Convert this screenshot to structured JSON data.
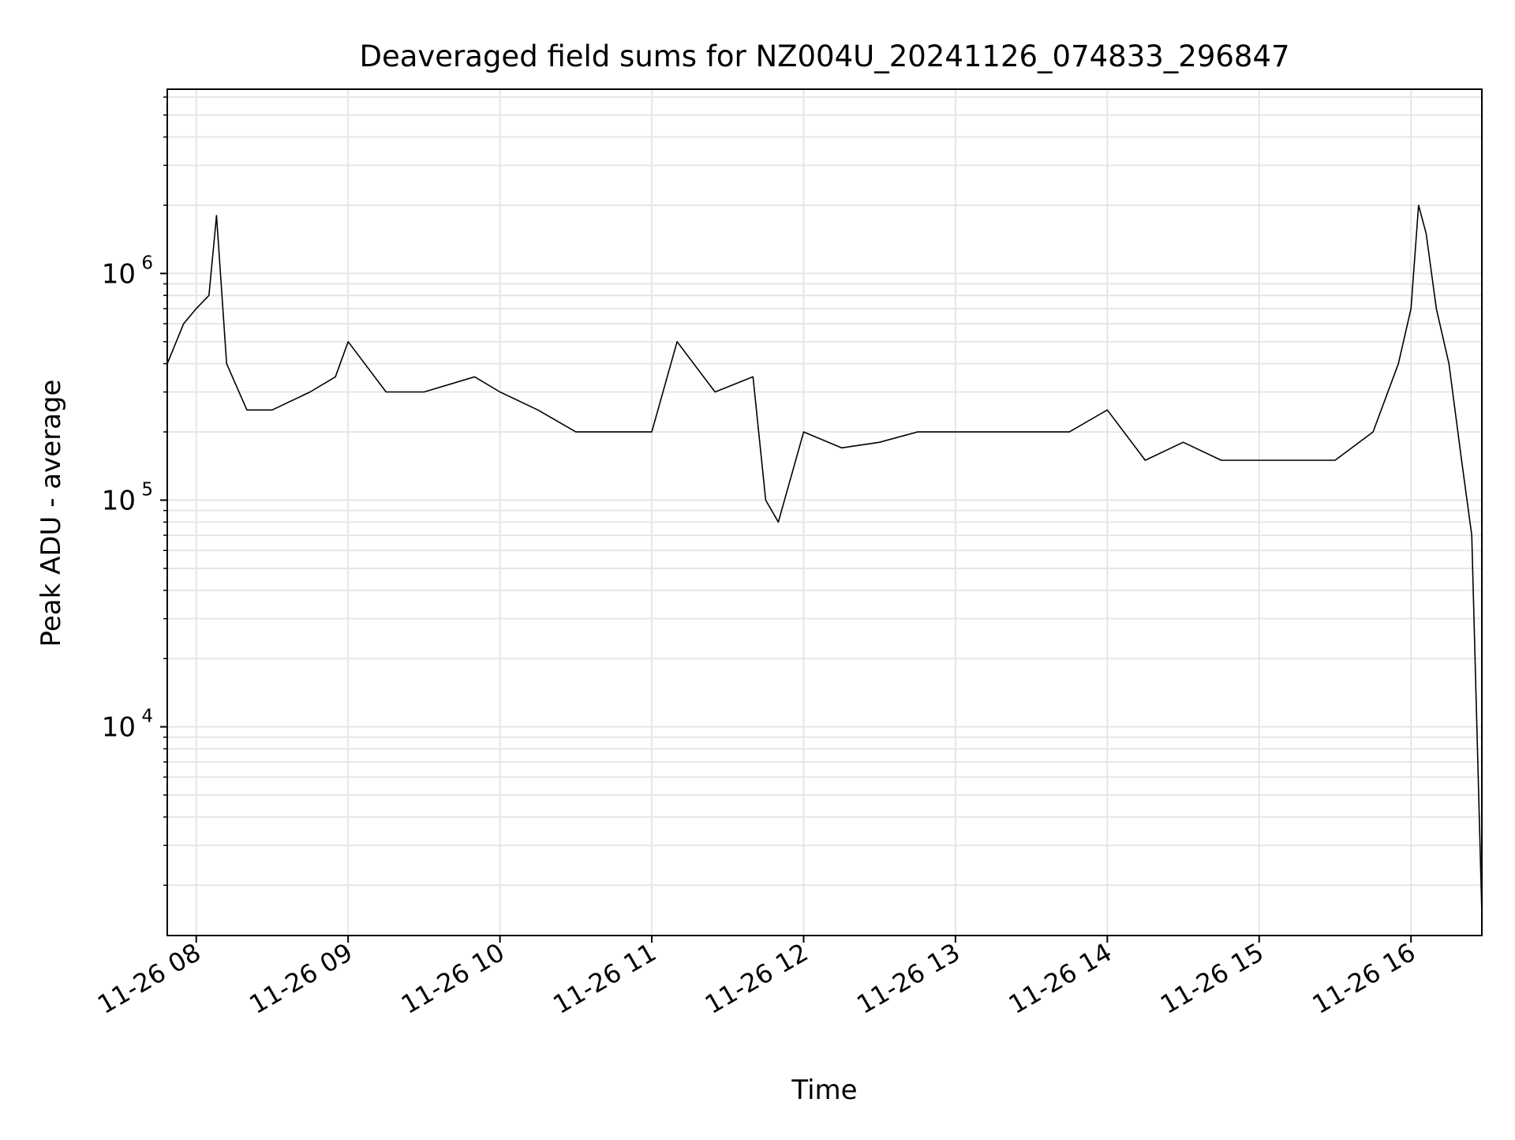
{
  "chart_data": {
    "type": "line",
    "title": "Deaveraged field sums for NZ004U_20241126_074833_296847",
    "xlabel": "Time",
    "ylabel": "Peak ADU - average",
    "x_type": "datetime",
    "xlim": [
      "2024-11-26T07:48:33",
      "2024-11-26T16:28:00"
    ],
    "x_ticks": [
      {
        "value": "2024-11-26T08:00",
        "label": "11-26 08"
      },
      {
        "value": "2024-11-26T09:00",
        "label": "11-26 09"
      },
      {
        "value": "2024-11-26T10:00",
        "label": "11-26 10"
      },
      {
        "value": "2024-11-26T11:00",
        "label": "11-26 11"
      },
      {
        "value": "2024-11-26T12:00",
        "label": "11-26 12"
      },
      {
        "value": "2024-11-26T13:00",
        "label": "11-26 13"
      },
      {
        "value": "2024-11-26T14:00",
        "label": "11-26 14"
      },
      {
        "value": "2024-11-26T15:00",
        "label": "11-26 15"
      },
      {
        "value": "2024-11-26T16:00",
        "label": "11-26 16"
      }
    ],
    "y_scale": "log",
    "ylim": [
      1200,
      6500000
    ],
    "y_ticks": [
      {
        "value": 10000,
        "base": "10",
        "exp": "4"
      },
      {
        "value": 100000,
        "base": "10",
        "exp": "5"
      },
      {
        "value": 1000000,
        "base": "10",
        "exp": "6"
      }
    ],
    "grid": true,
    "line_color": "#000000",
    "series": [
      {
        "x": [
          "2024-11-26T07:48:33",
          "2024-11-26T07:55",
          "2024-11-26T08:00",
          "2024-11-26T08:05",
          "2024-11-26T08:08",
          "2024-11-26T08:12",
          "2024-11-26T08:20",
          "2024-11-26T08:30",
          "2024-11-26T08:45",
          "2024-11-26T08:55",
          "2024-11-26T09:00",
          "2024-11-26T09:15",
          "2024-11-26T09:30",
          "2024-11-26T09:50",
          "2024-11-26T10:00",
          "2024-11-26T10:15",
          "2024-11-26T10:30",
          "2024-11-26T10:45",
          "2024-11-26T11:00",
          "2024-11-26T11:10",
          "2024-11-26T11:25",
          "2024-11-26T11:40",
          "2024-11-26T11:45",
          "2024-11-26T11:50",
          "2024-11-26T12:00",
          "2024-11-26T12:15",
          "2024-11-26T12:30",
          "2024-11-26T12:45",
          "2024-11-26T13:00",
          "2024-11-26T13:15",
          "2024-11-26T13:30",
          "2024-11-26T13:45",
          "2024-11-26T14:00",
          "2024-11-26T14:15",
          "2024-11-26T14:30",
          "2024-11-26T14:45",
          "2024-11-26T15:00",
          "2024-11-26T15:15",
          "2024-11-26T15:30",
          "2024-11-26T15:45",
          "2024-11-26T15:55",
          "2024-11-26T16:00",
          "2024-11-26T16:03",
          "2024-11-26T16:06",
          "2024-11-26T16:10",
          "2024-11-26T16:15",
          "2024-11-26T16:20",
          "2024-11-26T16:24",
          "2024-11-26T16:28"
        ],
        "values": [
          400000,
          600000,
          700000,
          800000,
          1800000,
          400000,
          250000,
          250000,
          300000,
          350000,
          500000,
          300000,
          300000,
          350000,
          300000,
          250000,
          200000,
          200000,
          200000,
          500000,
          300000,
          350000,
          100000,
          80000,
          200000,
          170000,
          180000,
          200000,
          200000,
          200000,
          200000,
          200000,
          250000,
          150000,
          180000,
          150000,
          150000,
          150000,
          150000,
          200000,
          400000,
          700000,
          2000000,
          1500000,
          700000,
          400000,
          150000,
          70000,
          1500
        ]
      }
    ]
  }
}
